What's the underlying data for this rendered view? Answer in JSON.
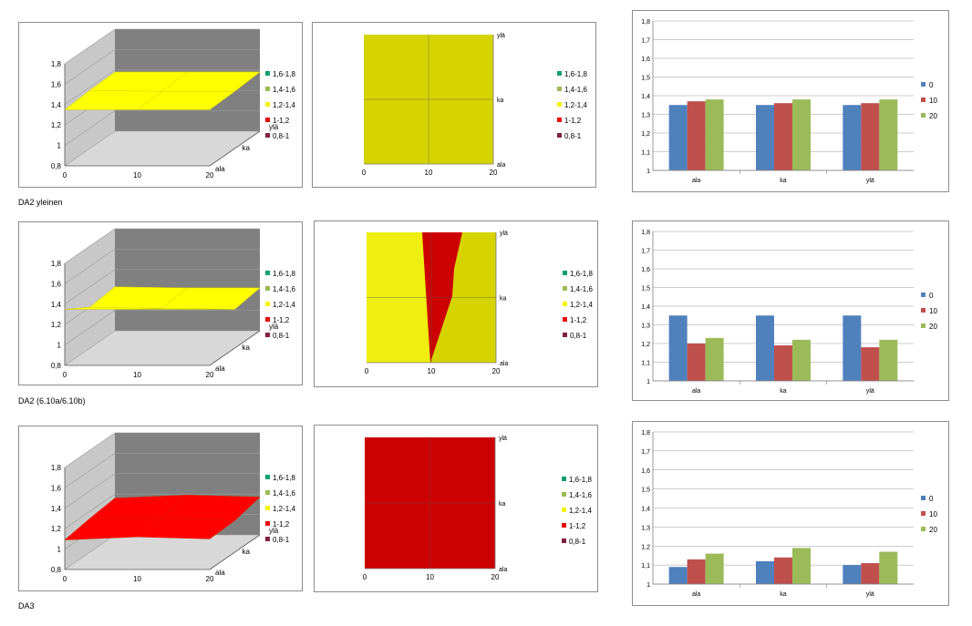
{
  "colors": {
    "band_1_6_1_8": "#10a070",
    "band_1_4_1_6": "#9cbc54",
    "band_1_2_1_4": "#f4f40a",
    "band_1_1_2": "#e80808",
    "band_0_8_1": "#802040",
    "series_0": "#4f81bd",
    "series_10": "#c0504d",
    "series_20": "#9bbb59",
    "contour_yellow": "#d6d400",
    "contour_light": "#eeee10",
    "contour_red": "#cc0000"
  },
  "rows": [
    {
      "caption": "DA2 yleinen",
      "surface": {
        "chart_data": {
          "type": "surface",
          "x_ticks": [
            "0",
            "10",
            "20"
          ],
          "y_ticks": [
            "ala",
            "ka",
            "ylä"
          ],
          "z_ticks": [
            "0,8",
            "1",
            "1,2",
            "1,4",
            "1,6",
            "1,8"
          ],
          "zlim": [
            0.8,
            1.8
          ],
          "x": [
            0,
            10,
            20
          ],
          "y": [
            "ala",
            "ka",
            "ylä"
          ],
          "z": [
            [
              1.35,
              1.37,
              1.38
            ],
            [
              1.35,
              1.36,
              1.38
            ],
            [
              1.35,
              1.36,
              1.38
            ]
          ],
          "legend": [
            "1,6-1,8",
            "1,4-1,6",
            "1,2-1,4",
            "1-1,2",
            "0,8-1"
          ]
        }
      },
      "contour": {
        "chart_data": {
          "type": "contour",
          "x_ticks": [
            "0",
            "10",
            "20"
          ],
          "y_ticks": [
            "ala",
            "ka",
            "ylä"
          ],
          "legend": [
            "1,6-1,8",
            "1,4-1,6",
            "1,2-1,4",
            "1-1,2",
            "0,8-1"
          ]
        }
      },
      "bars": {
        "chart_data": {
          "type": "bar",
          "categories": [
            "ala",
            "ka",
            "ylä"
          ],
          "series": [
            {
              "name": "0",
              "values": [
                1.35,
                1.35,
                1.35
              ]
            },
            {
              "name": "10",
              "values": [
                1.37,
                1.36,
                1.36
              ]
            },
            {
              "name": "20",
              "values": [
                1.38,
                1.38,
                1.38
              ]
            }
          ],
          "ylim": [
            1,
            1.8
          ],
          "y_ticks": [
            "1",
            "1,1",
            "1,2",
            "1,3",
            "1,4",
            "1,5",
            "1,6",
            "1,7",
            "1,8"
          ],
          "legend_position": "right"
        }
      }
    },
    {
      "caption": "DA2 (6.10a/6.10b)",
      "surface": {
        "chart_data": {
          "type": "surface",
          "x_ticks": [
            "0",
            "10",
            "20"
          ],
          "y_ticks": [
            "ala",
            "ka",
            "ylä"
          ],
          "z_ticks": [
            "0,8",
            "1",
            "1,2",
            "1,4",
            "1,6",
            "1,8"
          ],
          "zlim": [
            0.8,
            1.8
          ],
          "x": [
            0,
            10,
            20
          ],
          "y": [
            "ala",
            "ka",
            "ylä"
          ],
          "z": [
            [
              1.35,
              1.2,
              1.23
            ],
            [
              1.35,
              1.19,
              1.22
            ],
            [
              1.35,
              1.18,
              1.22
            ]
          ],
          "legend": [
            "1,6-1,8",
            "1,4-1,6",
            "1,2-1,4",
            "1-1,2",
            "0,8-1"
          ]
        }
      },
      "contour": {
        "chart_data": {
          "type": "contour",
          "x_ticks": [
            "0",
            "10",
            "20"
          ],
          "y_ticks": [
            "ala",
            "ka",
            "ylä"
          ],
          "legend": [
            "1,6-1,8",
            "1,4-1,6",
            "1,2-1,4",
            "1-1,2",
            "0,8-1"
          ]
        }
      },
      "bars": {
        "chart_data": {
          "type": "bar",
          "categories": [
            "ala",
            "ka",
            "ylä"
          ],
          "series": [
            {
              "name": "0",
              "values": [
                1.35,
                1.35,
                1.35
              ]
            },
            {
              "name": "10",
              "values": [
                1.2,
                1.19,
                1.18
              ]
            },
            {
              "name": "20",
              "values": [
                1.23,
                1.22,
                1.22
              ]
            }
          ],
          "ylim": [
            1,
            1.8
          ],
          "y_ticks": [
            "1",
            "1,1",
            "1,2",
            "1,3",
            "1,4",
            "1,5",
            "1,6",
            "1,7",
            "1,8"
          ],
          "legend_position": "right"
        }
      }
    },
    {
      "caption": "DA3",
      "surface": {
        "chart_data": {
          "type": "surface",
          "x_ticks": [
            "0",
            "10",
            "20"
          ],
          "y_ticks": [
            "ala",
            "ka",
            "ylä"
          ],
          "z_ticks": [
            "0,8",
            "1",
            "1,2",
            "1,4",
            "1,6",
            "1,8"
          ],
          "zlim": [
            0.8,
            1.8
          ],
          "x": [
            0,
            10,
            20
          ],
          "y": [
            "ala",
            "ka",
            "ylä"
          ],
          "z": [
            [
              1.09,
              1.13,
              1.16
            ],
            [
              1.12,
              1.14,
              1.19
            ],
            [
              1.1,
              1.11,
              1.17
            ]
          ],
          "legend": [
            "1,6-1,8",
            "1,4-1,6",
            "1,2-1,4",
            "1-1,2",
            "0,8-1"
          ]
        }
      },
      "contour": {
        "chart_data": {
          "type": "contour",
          "x_ticks": [
            "0",
            "10",
            "20"
          ],
          "y_ticks": [
            "ala",
            "ka",
            "ylä"
          ],
          "legend": [
            "1,6-1,8",
            "1,4-1,6",
            "1,2-1,4",
            "1-1,2",
            "0,8-1"
          ]
        }
      },
      "bars": {
        "chart_data": {
          "type": "bar",
          "categories": [
            "ala",
            "ka",
            "ylä"
          ],
          "series": [
            {
              "name": "0",
              "values": [
                1.09,
                1.12,
                1.1
              ]
            },
            {
              "name": "10",
              "values": [
                1.13,
                1.14,
                1.11
              ]
            },
            {
              "name": "20",
              "values": [
                1.16,
                1.19,
                1.17
              ]
            }
          ],
          "ylim": [
            1,
            1.8
          ],
          "y_ticks": [
            "1",
            "1,1",
            "1,2",
            "1,3",
            "1,4",
            "1,5",
            "1,6",
            "1,7",
            "1,8"
          ],
          "legend_position": "right"
        }
      }
    }
  ]
}
